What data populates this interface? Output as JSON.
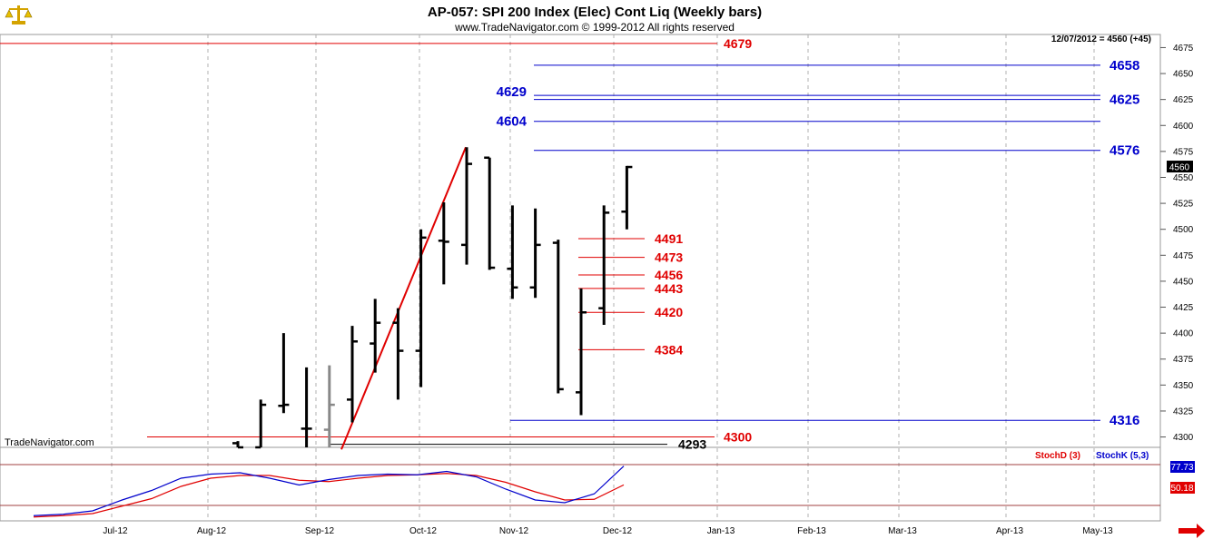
{
  "header": {
    "title": "AP-057:  SPI 200 Index (Elec) Cont Liq  (Weekly bars)",
    "copyright": "www.TradeNavigator.com © 1999-2012 All rights reserved",
    "last_bar_info": "12/07/2012 = 4560 (+45)",
    "watermark": "TradeNavigator.com"
  },
  "colors": {
    "price_bar": "#000000",
    "gap_bar": "#888888",
    "red_level": "#e00000",
    "blue_level": "#0000cc",
    "trendline": "#e00000",
    "stoch_d": "#e00000",
    "stoch_k": "#0000cc"
  },
  "chart_data": {
    "type": "ohlc",
    "price_axis": {
      "min": 4290,
      "max": 4685,
      "ticks": [
        4300,
        4325,
        4350,
        4375,
        4400,
        4425,
        4450,
        4475,
        4500,
        4525,
        4550,
        4575,
        4600,
        4625,
        4650,
        4675
      ]
    },
    "last_price_label": "4560",
    "x_labels": [
      "Jul-12",
      "Aug-12",
      "Sep-12",
      "Oct-12",
      "Nov-12",
      "Dec-12",
      "Jan-13",
      "Feb-13",
      "Mar-13",
      "Apr-13",
      "May-13"
    ],
    "bars": [
      {
        "week": 0,
        "o": 4294,
        "h": 4296,
        "l": 4288,
        "c": 4290
      },
      {
        "week": 1,
        "o": 4290,
        "h": 4336,
        "l": 4288,
        "c": 4331
      },
      {
        "week": 2,
        "o": 4330,
        "h": 4400,
        "l": 4323,
        "c": 4331
      },
      {
        "week": 3,
        "o": 4308,
        "h": 4367,
        "l": 4289,
        "c": 4308
      },
      {
        "week": 4,
        "o": 4307,
        "h": 4369,
        "l": 4288,
        "c": 4331,
        "color": "gap"
      },
      {
        "week": 5,
        "o": 4336,
        "h": 4407,
        "l": 4314,
        "c": 4392
      },
      {
        "week": 6,
        "o": 4390,
        "h": 4433,
        "l": 4362,
        "c": 4410
      },
      {
        "week": 7,
        "o": 4410,
        "h": 4424,
        "l": 4336,
        "c": 4383
      },
      {
        "week": 8,
        "o": 4383,
        "h": 4500,
        "l": 4348,
        "c": 4492
      },
      {
        "week": 9,
        "o": 4489,
        "h": 4526,
        "l": 4447,
        "c": 4488
      },
      {
        "week": 10,
        "o": 4485,
        "h": 4579,
        "l": 4466,
        "c": 4563
      },
      {
        "week": 11,
        "o": 4569,
        "h": 4569,
        "l": 4461,
        "c": 4463
      },
      {
        "week": 12,
        "o": 4462,
        "h": 4523,
        "l": 4433,
        "c": 4444
      },
      {
        "week": 13,
        "o": 4444,
        "h": 4520,
        "l": 4434,
        "c": 4485
      },
      {
        "week": 14,
        "o": 4487,
        "h": 4490,
        "l": 4342,
        "c": 4346
      },
      {
        "week": 15,
        "o": 4343,
        "h": 4443,
        "l": 4321,
        "c": 4420
      },
      {
        "week": 16,
        "o": 4424,
        "h": 4523,
        "l": 4408,
        "c": 4516
      },
      {
        "week": 17,
        "o": 4517,
        "h": 4561,
        "l": 4500,
        "c": 4560
      }
    ],
    "levels": [
      {
        "label": "4679",
        "value": 4679,
        "color": "red",
        "x_start": "axis-left",
        "x_end": "tag-right"
      },
      {
        "label": "4658",
        "value": 4658,
        "color": "blue",
        "x_start": "tag-left",
        "x_end": "axis-right"
      },
      {
        "label": "4629",
        "value": 4629,
        "color": "blue",
        "x_start": "tag-left",
        "x_end": "axis-right"
      },
      {
        "label": "4625",
        "value": 4625,
        "color": "blue",
        "x_start": "tag-left",
        "x_end": "axis-right"
      },
      {
        "label": "4604",
        "value": 4604,
        "color": "blue",
        "x_start": "tag-left",
        "x_end": "axis-right"
      },
      {
        "label": "4576",
        "value": 4576,
        "color": "blue",
        "x_start": "tag-left",
        "x_end": "axis-right"
      },
      {
        "label": "4491",
        "value": 4491,
        "color": "red",
        "x_start": "mid",
        "x_end": "mid-tag"
      },
      {
        "label": "4473",
        "value": 4473,
        "color": "red",
        "x_start": "mid",
        "x_end": "mid-tag"
      },
      {
        "label": "4456",
        "value": 4456,
        "color": "red",
        "x_start": "mid",
        "x_end": "mid-tag"
      },
      {
        "label": "4443",
        "value": 4443,
        "color": "red",
        "x_start": "mid",
        "x_end": "mid-tag"
      },
      {
        "label": "4420",
        "value": 4420,
        "color": "red",
        "x_start": "mid",
        "x_end": "mid-tag"
      },
      {
        "label": "4384",
        "value": 4384,
        "color": "red",
        "x_start": "mid",
        "x_end": "mid-tag"
      },
      {
        "label": "4316",
        "value": 4316,
        "color": "blue",
        "x_start": "tag-left",
        "x_end": "axis-right"
      },
      {
        "label": "4300",
        "value": 4300,
        "color": "red",
        "x_start": "low",
        "x_end": "low-tag"
      },
      {
        "label": "4293",
        "value": 4293,
        "color": "black",
        "x_start": "low",
        "x_end": "low-tag"
      }
    ],
    "trendline": {
      "from": {
        "week": 4,
        "price": 4288
      },
      "to": {
        "week": 10,
        "price": 4579
      }
    },
    "stochastic": {
      "legend_d": "StochD (3)",
      "legend_k": "StochK (5,3)",
      "value_k": "77.73",
      "value_d": "50.18",
      "level_top": 80,
      "level_bottom": 20,
      "k": [
        5,
        7,
        12,
        28,
        42,
        60,
        66,
        68,
        60,
        50,
        58,
        64,
        66,
        65,
        70,
        62,
        44,
        28,
        24,
        37,
        77.73
      ],
      "d": [
        3,
        5,
        8,
        19,
        30,
        48,
        60,
        64,
        64,
        57,
        55,
        60,
        64,
        65,
        67,
        64,
        54,
        40,
        28,
        29,
        50.18
      ]
    }
  }
}
